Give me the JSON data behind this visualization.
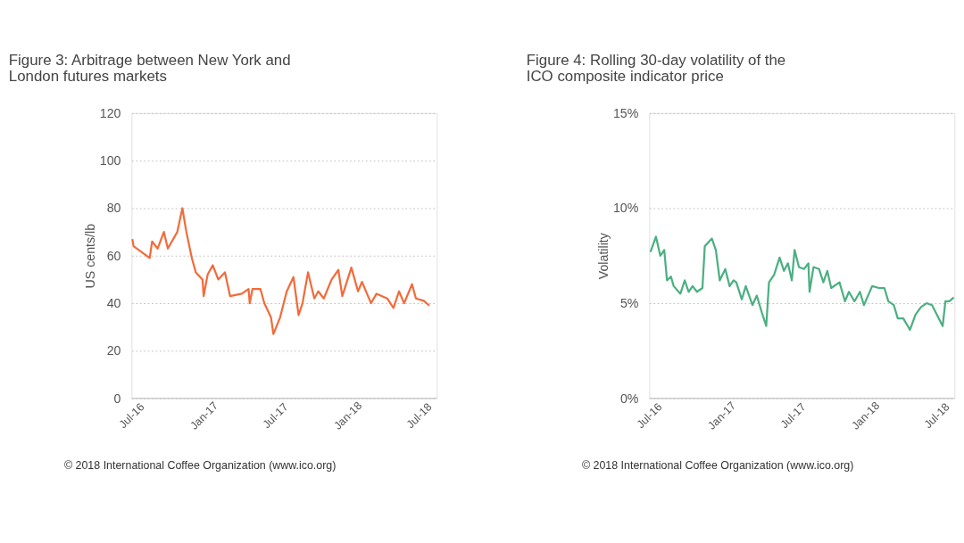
{
  "chart_data": [
    {
      "type": "line",
      "title": "Figure 3:   Arbitrage between New York and London futures markets",
      "ylabel": "US cents/lb",
      "series": [
        {
          "color": "#f26b3a",
          "x": [
            "2016-07-03",
            "2016-07-06",
            "2016-08-16",
            "2016-08-22",
            "2016-09-05",
            "2016-09-21",
            "2016-10-01",
            "2016-10-25",
            "2016-11-07",
            "2016-11-17",
            "2016-12-01",
            "2016-12-11",
            "2016-12-28",
            "2016-12-31",
            "2017-01-10",
            "2017-01-23",
            "2017-02-06",
            "2017-02-23",
            "2017-03-08",
            "2017-04-07",
            "2017-04-24",
            "2017-04-27",
            "2017-05-04",
            "2017-05-24",
            "2017-06-03",
            "2017-06-20",
            "2017-06-26",
            "2017-07-13",
            "2017-07-30",
            "2017-08-16",
            "2017-08-29",
            "2017-09-08",
            "2017-09-22",
            "2017-10-08",
            "2017-10-18",
            "2017-11-01",
            "2017-11-21",
            "2017-12-08",
            "2017-12-18",
            "2018-01-10",
            "2018-01-27",
            "2018-02-06",
            "2018-03-01",
            "2018-03-15",
            "2018-04-11",
            "2018-04-27",
            "2018-05-11",
            "2018-05-24",
            "2018-06-13",
            "2018-06-23",
            "2018-07-13",
            "2018-07-27"
          ],
          "values": [
            67,
            64,
            59,
            66,
            63,
            70,
            63,
            70,
            80,
            70,
            59,
            53,
            50,
            43,
            52,
            56,
            50,
            53,
            43,
            44,
            46,
            40,
            46,
            46,
            40,
            34,
            27,
            34,
            45,
            51,
            35,
            40,
            53,
            42,
            45,
            42,
            50,
            54,
            43,
            55,
            45,
            49,
            40,
            44,
            42,
            38,
            45,
            40,
            48,
            42,
            41,
            39
          ]
        }
      ],
      "xlim": [
        "2016-07-01",
        "2018-08-15"
      ],
      "xticks": [
        {
          "value": "2016-07-01",
          "label": "Jul-16"
        },
        {
          "value": "2017-01-01",
          "label": "Jan-17"
        },
        {
          "value": "2017-07-01",
          "label": "Jul-17"
        },
        {
          "value": "2018-01-01",
          "label": "Jan-18"
        },
        {
          "value": "2018-07-01",
          "label": "Jul-18"
        }
      ],
      "ylim": [
        0,
        120
      ],
      "yticks": [
        0,
        20,
        40,
        60,
        80,
        100,
        120
      ],
      "grid": "y",
      "annotations": [
        "© 2018 International Coffee Organization (www.ico.org)"
      ]
    },
    {
      "type": "line",
      "title": "Figure 4:   Rolling 30-day volatility of the ICO composite indicator price",
      "ylabel": "Volatility",
      "series": [
        {
          "color": "#4caf82",
          "x": [
            "2016-07-04",
            "2016-07-18",
            "2016-07-29",
            "2016-08-08",
            "2016-08-15",
            "2016-08-25",
            "2016-09-01",
            "2016-09-18",
            "2016-09-29",
            "2016-10-09",
            "2016-10-19",
            "2016-10-30",
            "2016-11-13",
            "2016-11-19",
            "2016-12-07",
            "2016-12-17",
            "2016-12-27",
            "2017-01-10",
            "2017-01-21",
            "2017-01-31",
            "2017-02-07",
            "2017-02-21",
            "2017-03-03",
            "2017-03-20",
            "2017-03-31",
            "2017-04-13",
            "2017-04-24",
            "2017-05-01",
            "2017-05-14",
            "2017-05-28",
            "2017-06-08",
            "2017-06-18",
            "2017-06-28",
            "2017-07-05",
            "2017-07-16",
            "2017-07-29",
            "2017-08-09",
            "2017-08-12",
            "2017-08-22",
            "2017-09-05",
            "2017-09-16",
            "2017-09-26",
            "2017-10-06",
            "2017-10-27",
            "2017-11-10",
            "2017-11-20",
            "2017-12-04",
            "2017-12-18",
            "2017-12-28",
            "2018-01-18",
            "2018-02-04",
            "2018-02-18",
            "2018-02-28",
            "2018-03-14",
            "2018-03-24",
            "2018-04-07",
            "2018-04-24",
            "2018-05-08",
            "2018-05-22",
            "2018-06-05",
            "2018-06-19",
            "2018-07-06",
            "2018-07-16",
            "2018-07-23",
            "2018-08-02",
            "2018-08-13"
          ],
          "values": [
            7.7,
            8.5,
            7.5,
            7.8,
            6.2,
            6.4,
            5.9,
            5.5,
            6.2,
            5.6,
            5.9,
            5.6,
            5.8,
            8.0,
            8.4,
            7.8,
            6.2,
            6.8,
            5.9,
            6.2,
            6.1,
            5.2,
            5.9,
            4.9,
            5.4,
            4.5,
            3.8,
            6.1,
            6.5,
            7.4,
            6.7,
            7.1,
            6.2,
            7.8,
            6.9,
            6.8,
            7.1,
            5.6,
            6.9,
            6.8,
            6.1,
            6.7,
            5.8,
            6.1,
            5.1,
            5.6,
            5.1,
            5.6,
            4.9,
            5.9,
            5.8,
            5.8,
            5.1,
            4.9,
            4.2,
            4.2,
            3.6,
            4.4,
            4.8,
            5.0,
            4.9,
            4.2,
            3.8,
            5.1,
            5.1,
            5.3
          ]
        }
      ],
      "xlim": [
        "2016-07-01",
        "2018-08-15"
      ],
      "xticks": [
        {
          "value": "2016-07-01",
          "label": "Jul-16"
        },
        {
          "value": "2017-01-01",
          "label": "Jan-17"
        },
        {
          "value": "2017-07-01",
          "label": "Jul-17"
        },
        {
          "value": "2018-01-01",
          "label": "Jan-18"
        },
        {
          "value": "2018-07-01",
          "label": "Jul-18"
        }
      ],
      "ylim": [
        0,
        15
      ],
      "yticks": [
        {
          "value": 0,
          "label": "0%"
        },
        {
          "value": 5,
          "label": "5%"
        },
        {
          "value": 10,
          "label": "10%"
        },
        {
          "value": 15,
          "label": "15%"
        }
      ],
      "grid": "y",
      "annotations": [
        "© 2018 International Coffee Organization (www.ico.org)"
      ]
    }
  ]
}
